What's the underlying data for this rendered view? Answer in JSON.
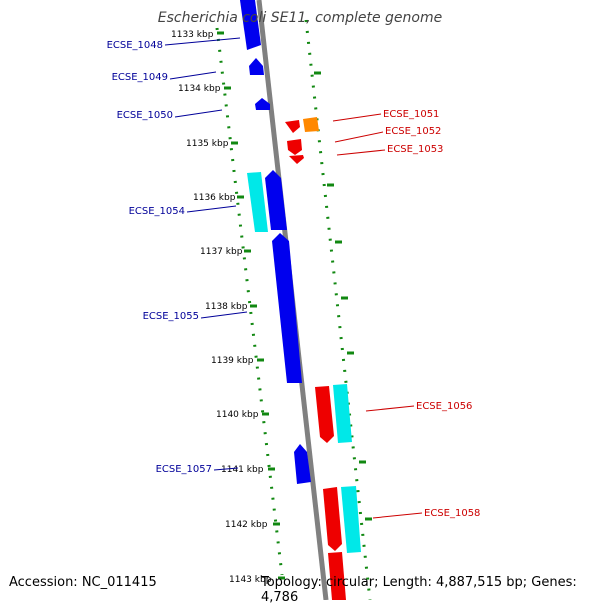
{
  "title": "Escherichia coli SE11, complete genome",
  "footer": {
    "accession": "Accession: NC_011415",
    "topology": "Topology: circular; Length: 4,887,515 bp; Genes: 4,786"
  },
  "colors": {
    "forward_gene": "#0000ee",
    "reverse_gene": "#ee0000",
    "rna_gene": "#00e8e8",
    "highlight_gene": "#ff8800",
    "forward_label": "#000099",
    "reverse_label": "#cc0000",
    "backbone": "#808080",
    "ruler_dots": "#118811"
  },
  "ruler_ticks": [
    {
      "label": "1133 kbp"
    },
    {
      "label": "1134 kbp"
    },
    {
      "label": "1135 kbp"
    },
    {
      "label": "1136 kbp"
    },
    {
      "label": "1137 kbp"
    },
    {
      "label": "1138 kbp"
    },
    {
      "label": "1139 kbp"
    },
    {
      "label": "1140 kbp"
    },
    {
      "label": "1141 kbp"
    },
    {
      "label": "1142 kbp"
    },
    {
      "label": "1143 kbp"
    }
  ],
  "gene_labels": {
    "left": [
      "ECSE_1048",
      "ECSE_1049",
      "ECSE_1050",
      "ECSE_1054",
      "ECSE_1055",
      "ECSE_1057"
    ],
    "right": [
      "ECSE_1051",
      "ECSE_1052",
      "ECSE_1053",
      "ECSE_1056",
      "ECSE_1058"
    ]
  }
}
